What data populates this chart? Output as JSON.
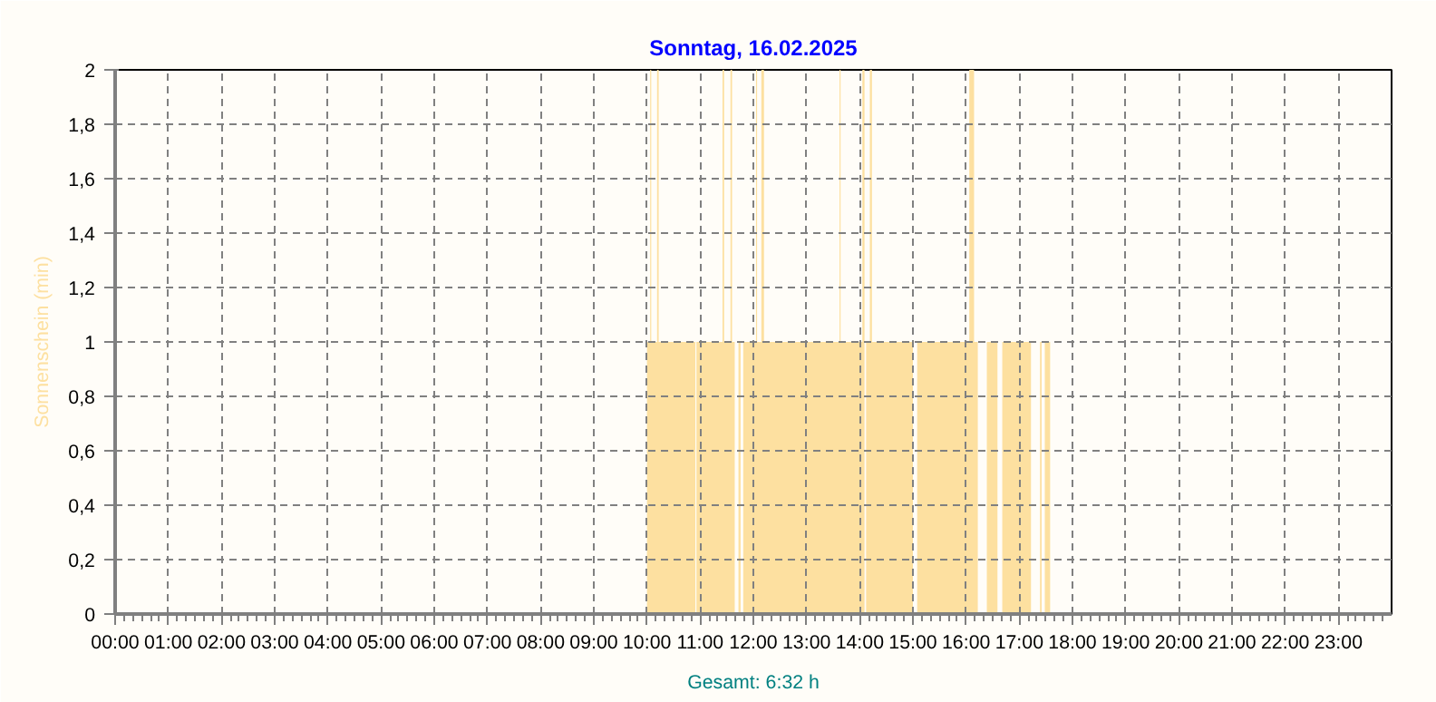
{
  "chart_data": {
    "type": "area",
    "title": "Sonntag, 16.02.2025",
    "ylabel": "Sonnenschein (min)",
    "annotations": [
      "Gesamt: 6:32 h"
    ],
    "x": [
      0,
      10.0,
      10.0,
      10.06,
      10.06,
      10.08,
      10.08,
      10.19,
      10.19,
      10.22,
      10.22,
      10.91,
      10.91,
      10.93,
      10.93,
      11.42,
      11.42,
      11.45,
      11.45,
      11.57,
      11.57,
      11.6,
      11.6,
      11.65,
      11.65,
      11.72,
      11.72,
      11.76,
      11.76,
      11.81,
      11.81,
      12.05,
      12.05,
      12.07,
      12.07,
      12.15,
      12.15,
      12.2,
      12.2,
      13.62,
      13.62,
      13.64,
      13.64,
      14.05,
      14.05,
      14.09,
      14.09,
      14.12,
      14.12,
      14.19,
      14.19,
      14.23,
      14.23,
      15.0,
      15.0,
      15.08,
      15.08,
      16.06,
      16.06,
      16.15,
      16.15,
      16.22,
      16.22,
      16.39,
      16.39,
      16.59,
      16.59,
      16.68,
      16.68,
      17.22,
      17.22,
      17.39,
      17.39,
      17.42,
      17.42,
      17.48,
      17.48,
      17.58,
      17.58,
      24
    ],
    "values": [
      0,
      0,
      1,
      1,
      2,
      2,
      1,
      1,
      2,
      2,
      1,
      1,
      0,
      0,
      1,
      1,
      2,
      2,
      1,
      1,
      2,
      2,
      1,
      1,
      0,
      0,
      1,
      1,
      0,
      0,
      1,
      1,
      2,
      2,
      1,
      1,
      2,
      2,
      1,
      1,
      2,
      2,
      1,
      1,
      2,
      2,
      0,
      0,
      1,
      1,
      2,
      2,
      1,
      1,
      0,
      0,
      1,
      1,
      2,
      2,
      1,
      1,
      0,
      0,
      1,
      1,
      0,
      0,
      1,
      1,
      0,
      0,
      1,
      1,
      0,
      0,
      1,
      1,
      0,
      0
    ],
    "color": "#fde0a0",
    "xlim": [
      0,
      24
    ],
    "xticks": [
      {
        "value": 0,
        "label": "00:00"
      },
      {
        "value": 1,
        "label": "01:00"
      },
      {
        "value": 2,
        "label": "02:00"
      },
      {
        "value": 3,
        "label": "03:00"
      },
      {
        "value": 4,
        "label": "04:00"
      },
      {
        "value": 5,
        "label": "05:00"
      },
      {
        "value": 6,
        "label": "06:00"
      },
      {
        "value": 7,
        "label": "07:00"
      },
      {
        "value": 8,
        "label": "08:00"
      },
      {
        "value": 9,
        "label": "09:00"
      },
      {
        "value": 10,
        "label": "10:00"
      },
      {
        "value": 11,
        "label": "11:00"
      },
      {
        "value": 12,
        "label": "12:00"
      },
      {
        "value": 13,
        "label": "13:00"
      },
      {
        "value": 14,
        "label": "14:00"
      },
      {
        "value": 15,
        "label": "15:00"
      },
      {
        "value": 16,
        "label": "16:00"
      },
      {
        "value": 17,
        "label": "17:00"
      },
      {
        "value": 18,
        "label": "18:00"
      },
      {
        "value": 19,
        "label": "19:00"
      },
      {
        "value": 20,
        "label": "20:00"
      },
      {
        "value": 21,
        "label": "21:00"
      },
      {
        "value": 22,
        "label": "22:00"
      },
      {
        "value": 23,
        "label": "23:00"
      }
    ],
    "ylim": [
      0,
      2
    ],
    "yticks": [
      0,
      {
        "value": 0.2,
        "label": "0,2"
      },
      {
        "value": 0.4,
        "label": "0,4"
      },
      {
        "value": 0.6,
        "label": "0,6"
      },
      {
        "value": 0.8,
        "label": "0,8"
      },
      1,
      {
        "value": 1.2,
        "label": "1,2"
      },
      {
        "value": 1.4,
        "label": "1,4"
      },
      {
        "value": 1.6,
        "label": "1,6"
      },
      {
        "value": 1.8,
        "label": "1,8"
      },
      2
    ],
    "grid": true
  }
}
